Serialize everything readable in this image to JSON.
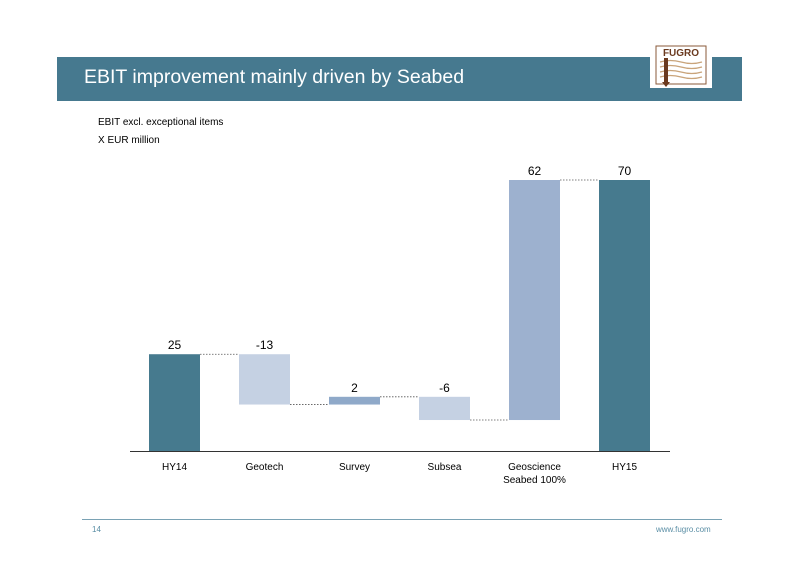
{
  "slide": {
    "title": "EBIT improvement mainly driven by Seabed",
    "page_number": "14",
    "website": "www.fugro.com",
    "logo_text": "FUGRO"
  },
  "chart_data": {
    "type": "bar",
    "subtype": "waterfall",
    "title": "EBIT excl. exceptional items",
    "unit_label": "X EUR million",
    "categories": [
      "HY14",
      "Geotech",
      "Survey",
      "Subsea",
      "Geoscience Seabed 100%",
      "HY15"
    ],
    "category_lines": [
      [
        "HY14"
      ],
      [
        "Geotech"
      ],
      [
        "Survey"
      ],
      [
        "Subsea"
      ],
      [
        "Geoscience",
        "Seabed 100%"
      ],
      [
        "HY15"
      ]
    ],
    "values": [
      25,
      -13,
      2,
      -6,
      62,
      70
    ],
    "bar_kinds": [
      "total",
      "delta",
      "delta",
      "delta",
      "delta",
      "total"
    ],
    "value_labels": [
      "25",
      "-13",
      "2",
      "-6",
      "62",
      "70"
    ],
    "ylim": [
      0,
      72
    ],
    "grid": false,
    "connectors": true,
    "colors": {
      "total": "#467a8e",
      "decrease": "#c5d1e3",
      "increase_small": "#8fa9c9",
      "increase_large": "#9db1cf",
      "connector": "#555555",
      "axis": "#333333"
    }
  }
}
